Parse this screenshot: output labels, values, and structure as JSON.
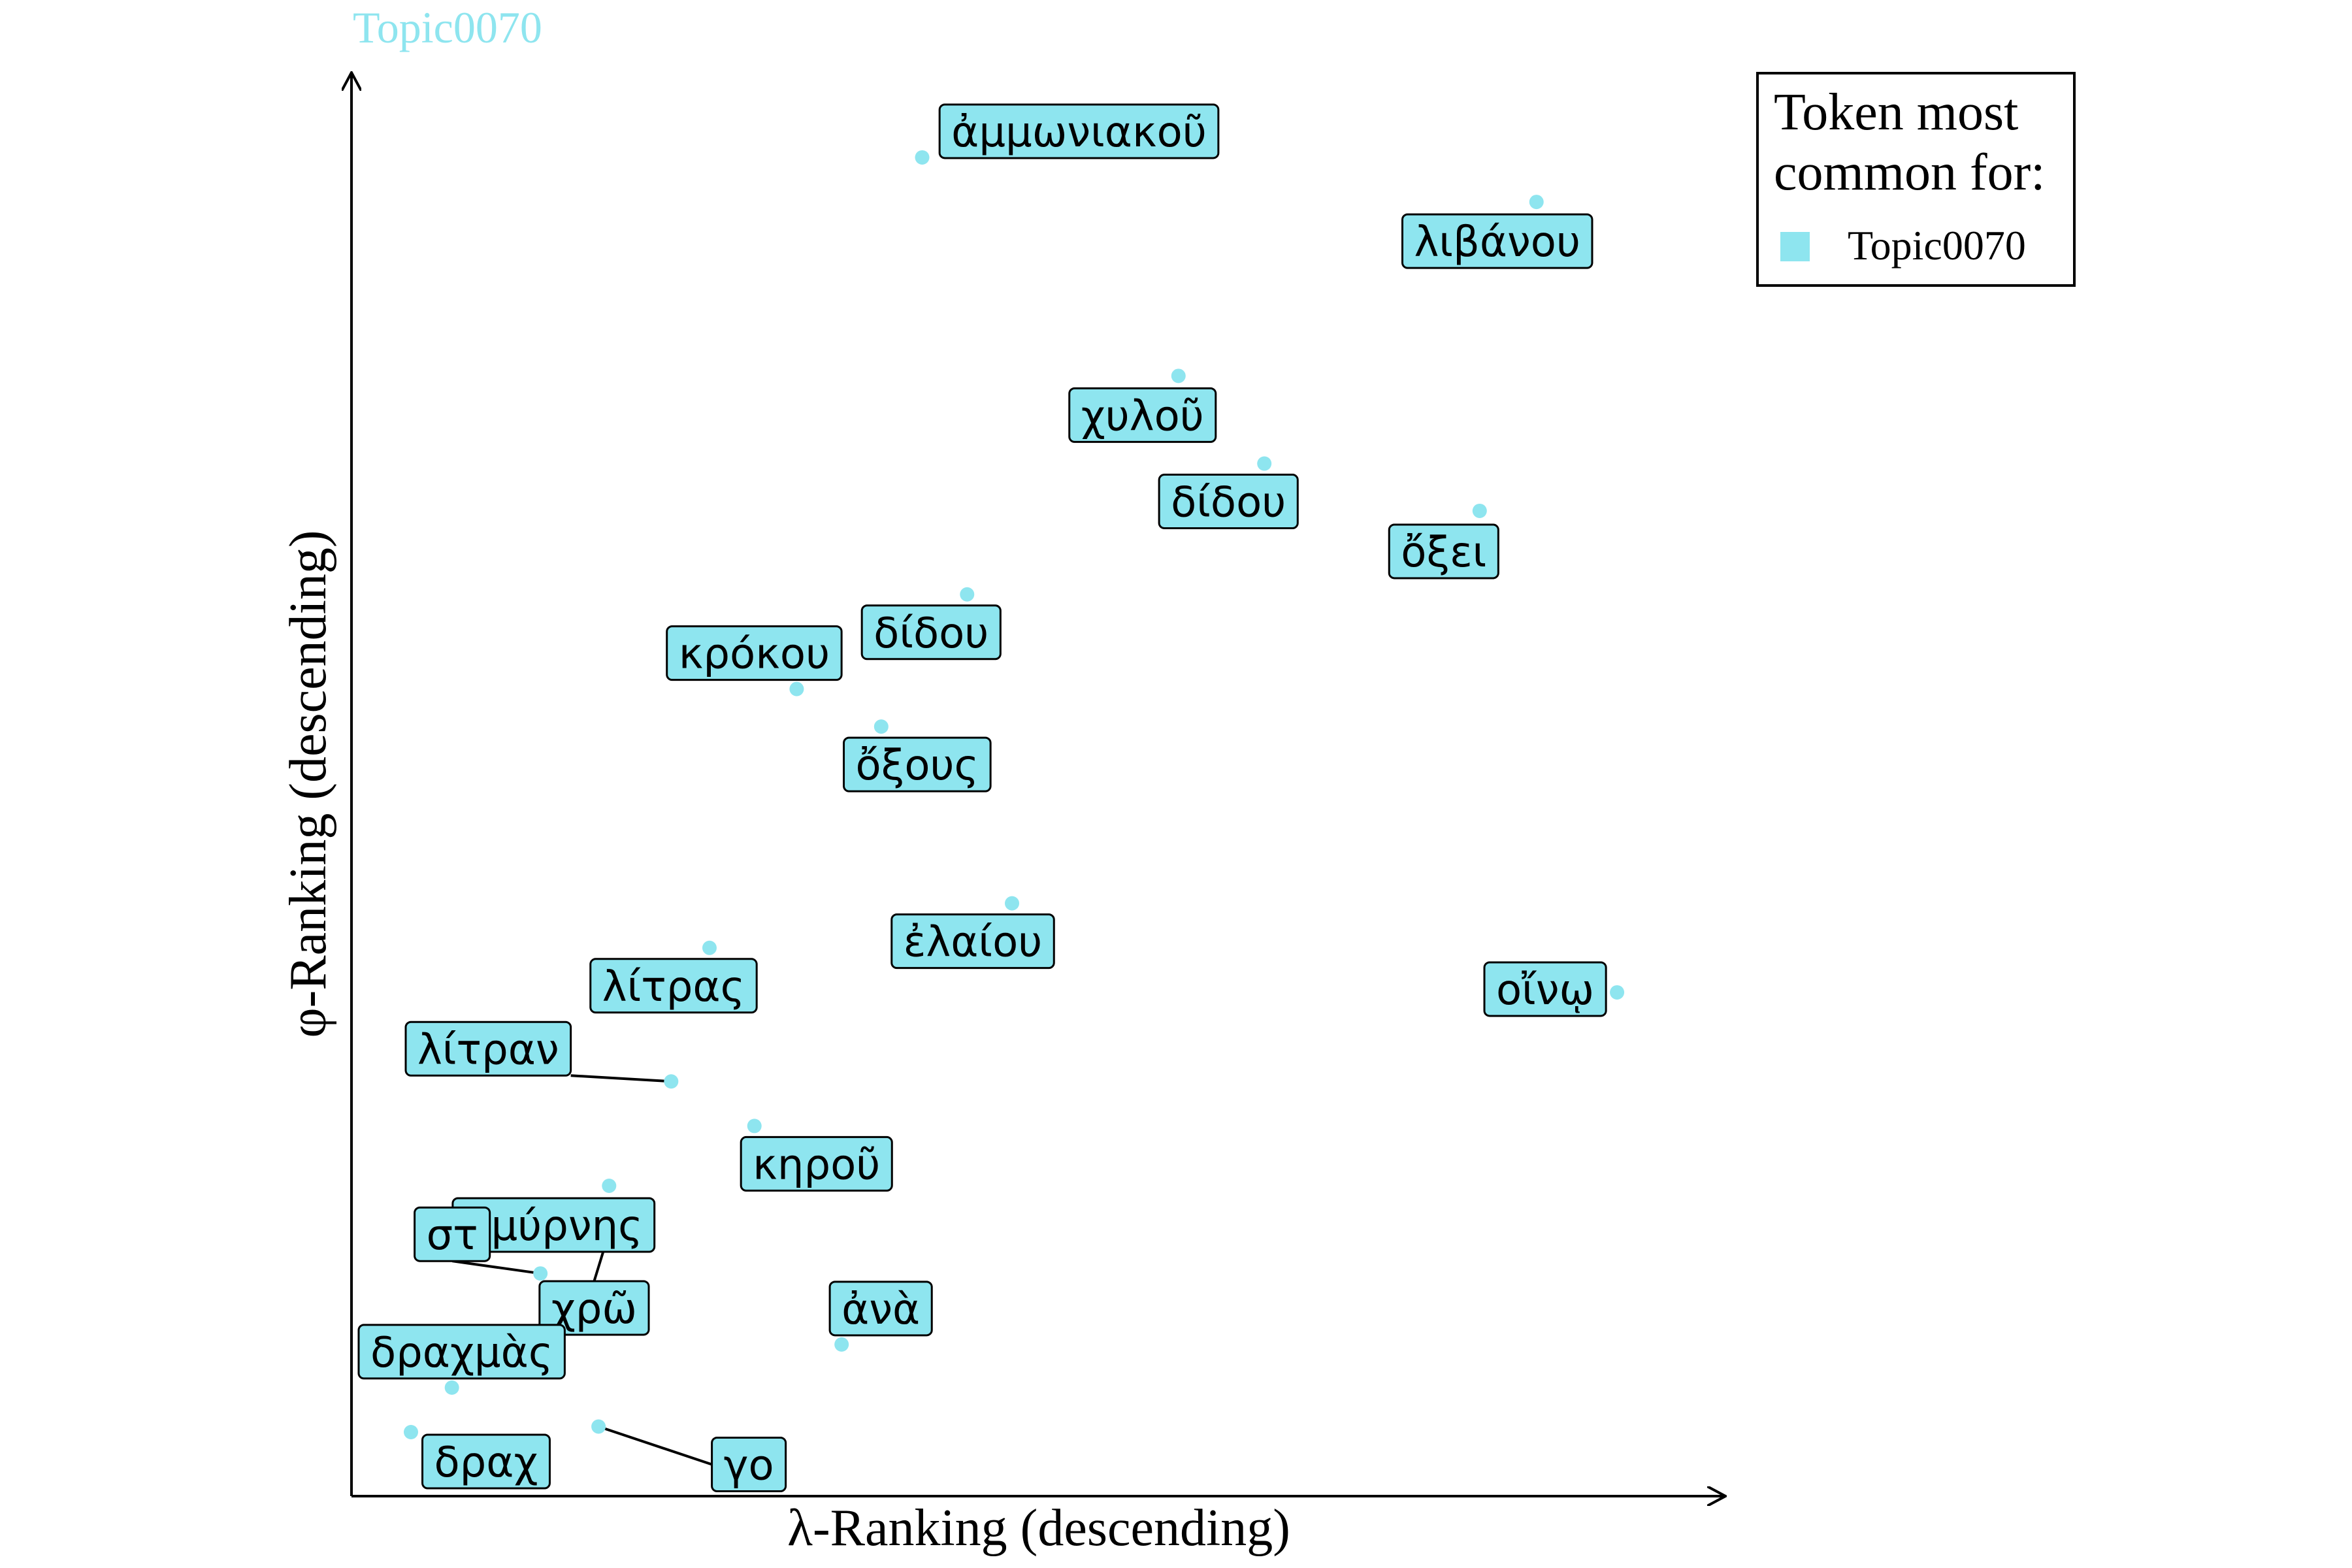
{
  "chart_data": {
    "type": "scatter",
    "title": "Topic0070",
    "xlabel": "λ-Ranking (descending)",
    "ylabel": "φ-Ranking (descending)",
    "xlim": [
      0,
      100
    ],
    "ylim": [
      0,
      100
    ],
    "grid": false,
    "legend": {
      "title_lines": [
        "Token most",
        "common for:"
      ],
      "placement": "top-right",
      "entries": [
        {
          "name": "Topic0070",
          "color": "#8ee5ef"
        }
      ]
    },
    "point_color": "#8ee5ef",
    "label_fill": "#8ee5ef",
    "points": [
      {
        "label": "ἀμμωνιακοῦ",
        "x": 43.2,
        "y": 96.2
      },
      {
        "label": "λιβάνου",
        "x": 89.7,
        "y": 93.0
      },
      {
        "label": "χυλοῦ",
        "x": 62.6,
        "y": 80.5
      },
      {
        "label": "δίδου",
        "x": 69.1,
        "y": 74.2
      },
      {
        "label": "ὄξει",
        "x": 85.4,
        "y": 70.8
      },
      {
        "label": "δίδου",
        "x": 46.6,
        "y": 64.8
      },
      {
        "label": "κρόκου",
        "x": 33.7,
        "y": 58.0
      },
      {
        "label": "ὄξους",
        "x": 40.1,
        "y": 55.3
      },
      {
        "label": "ἐλαίου",
        "x": 50.0,
        "y": 42.6
      },
      {
        "label": "λίτρας",
        "x": 27.1,
        "y": 39.4
      },
      {
        "label": "οἴνῳ",
        "x": 95.8,
        "y": 36.2
      },
      {
        "label": "λίτραν",
        "x": 24.2,
        "y": 29.8
      },
      {
        "label": "σμύρνης",
        "x": 19.5,
        "y": 22.3
      },
      {
        "label": "κηροῦ",
        "x": 30.5,
        "y": 26.6
      },
      {
        "label": "χρῶ",
        "x": 20.1,
        "y": 20.8
      },
      {
        "label": "στ",
        "x": 14.3,
        "y": 16.0
      },
      {
        "label": "ἀνὰ",
        "x": 37.1,
        "y": 10.9
      },
      {
        "label": "δραχμὰς",
        "x": 7.6,
        "y": 7.8
      },
      {
        "label": "γο",
        "x": 18.7,
        "y": 5.0
      },
      {
        "label": "δραχ",
        "x": 4.5,
        "y": 4.6
      }
    ]
  }
}
